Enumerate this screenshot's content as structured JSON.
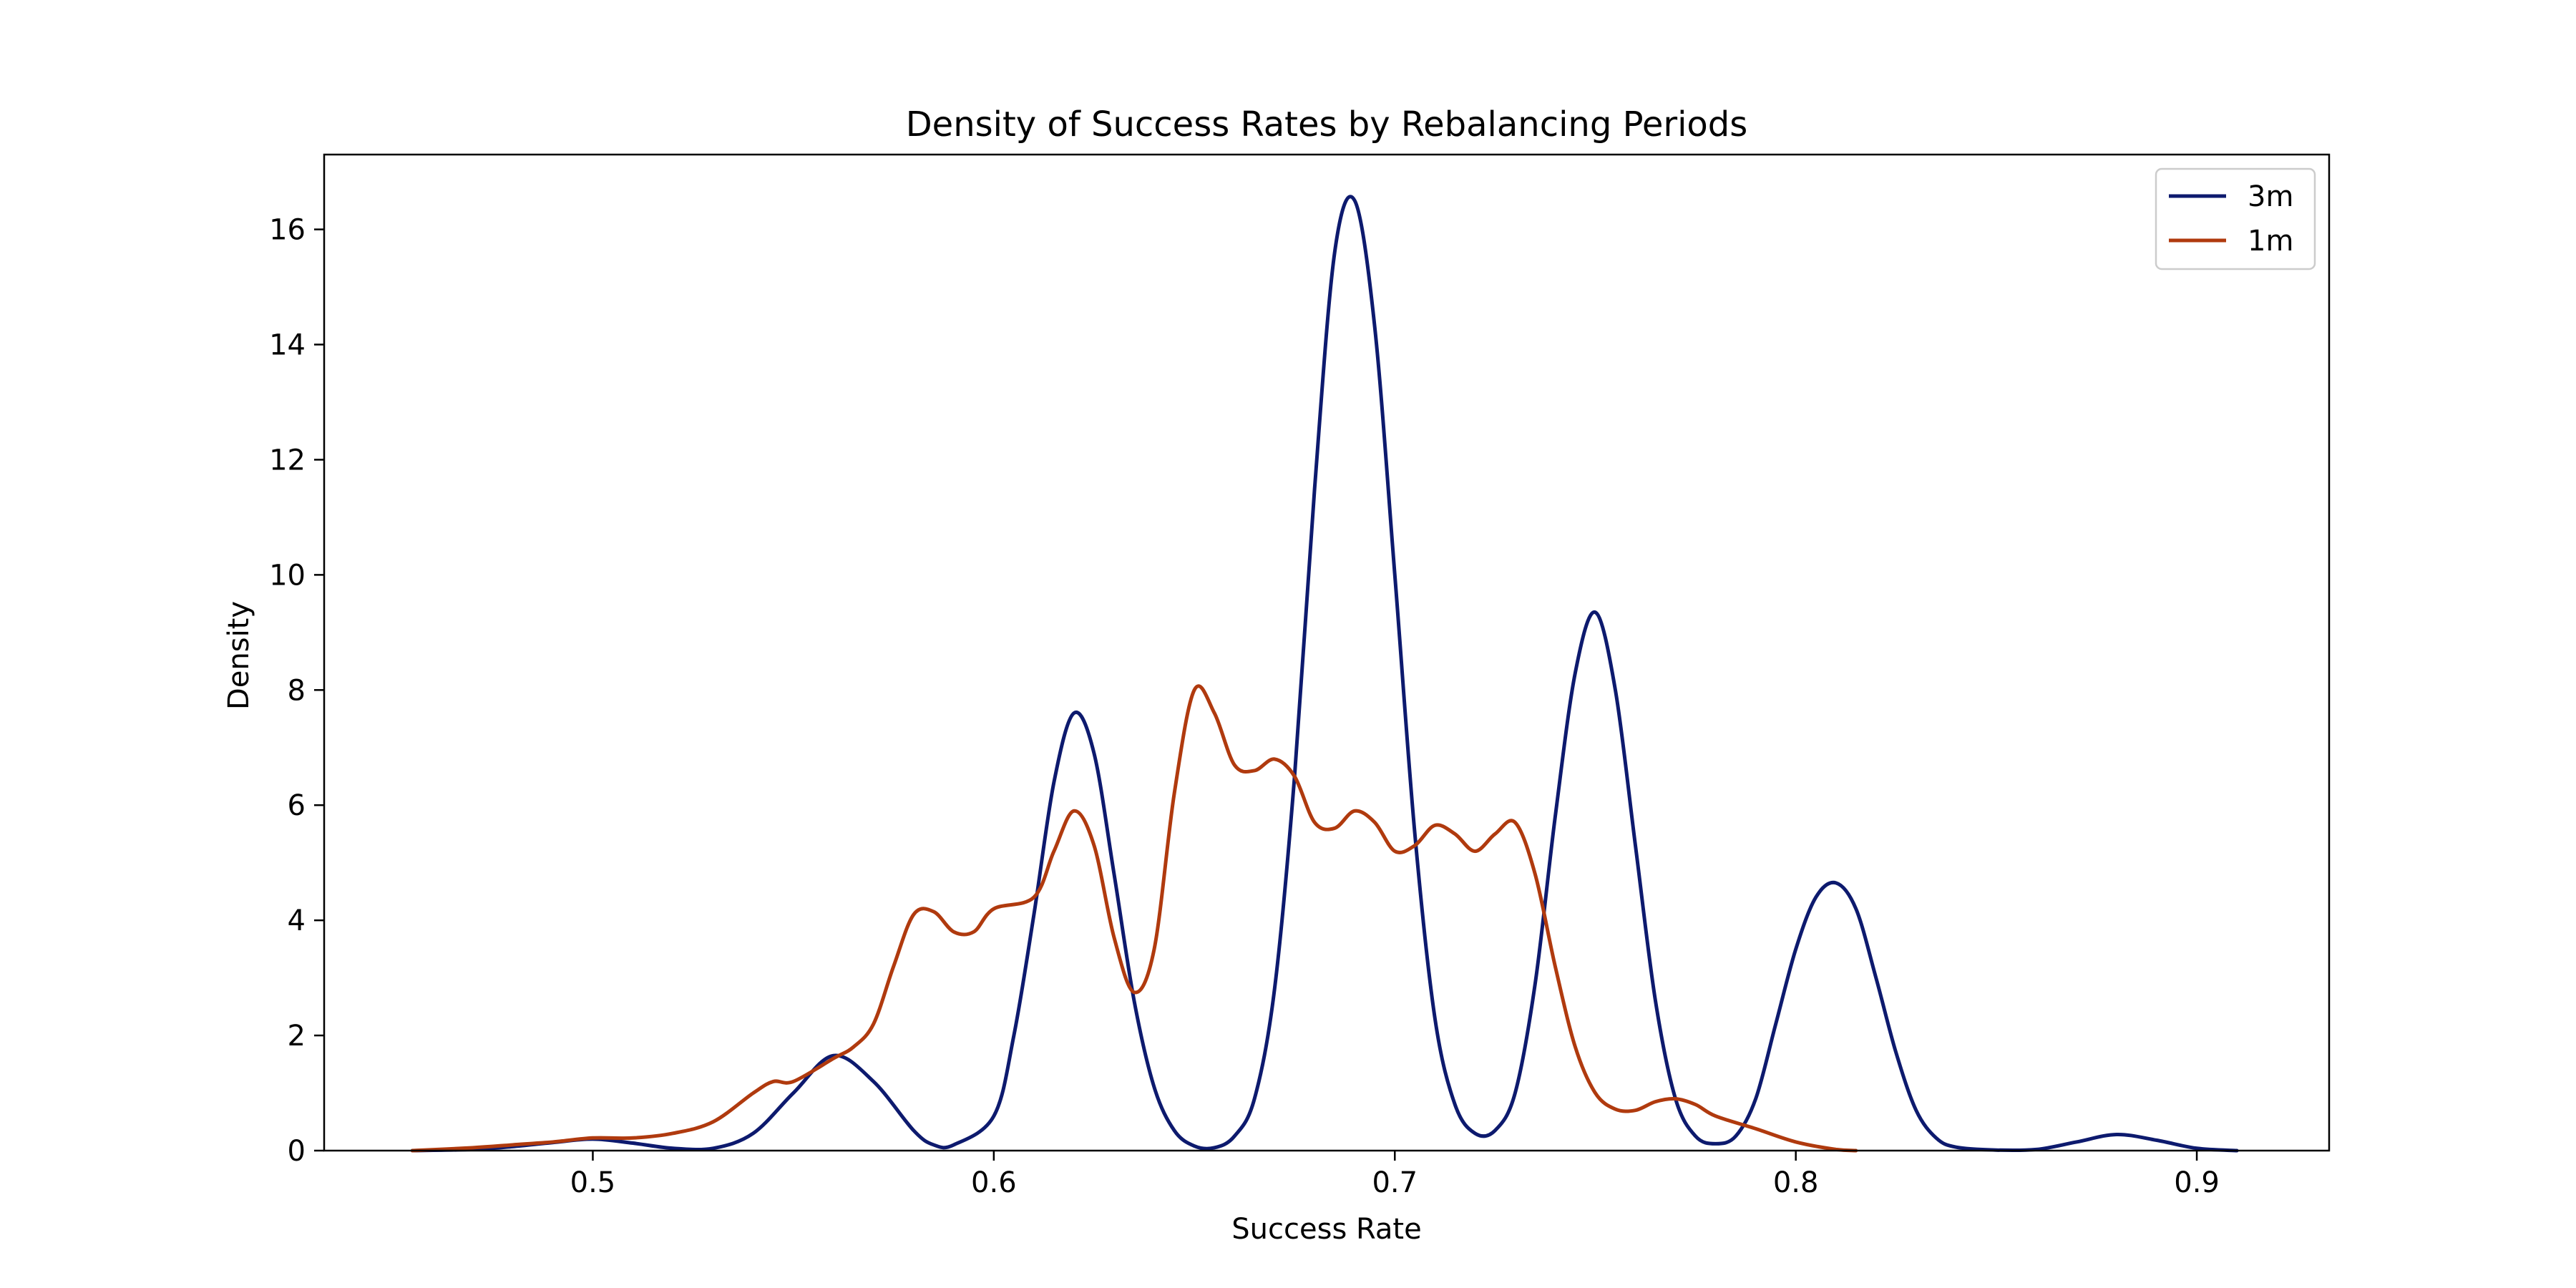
{
  "chart_data": {
    "type": "line",
    "title": "Density of Success Rates by Rebalancing Periods",
    "xlabel": "Success Rate",
    "ylabel": "Density",
    "xlim": [
      0.433,
      0.933
    ],
    "ylim": [
      0,
      17.3
    ],
    "xticks": [
      0.5,
      0.6,
      0.7,
      0.8,
      0.9
    ],
    "xtick_labels": [
      "0.5",
      "0.6",
      "0.7",
      "0.8",
      "0.9"
    ],
    "yticks": [
      0,
      2,
      4,
      6,
      8,
      10,
      12,
      14,
      16
    ],
    "ytick_labels": [
      "0",
      "2",
      "4",
      "6",
      "8",
      "10",
      "12",
      "14",
      "16"
    ],
    "grid": false,
    "legend_position": "top-right",
    "series": [
      {
        "name": "3m",
        "color": "#0d1a6e",
        "points": [
          [
            0.455,
            0.0
          ],
          [
            0.47,
            0.02
          ],
          [
            0.48,
            0.07
          ],
          [
            0.49,
            0.14
          ],
          [
            0.5,
            0.2
          ],
          [
            0.51,
            0.13
          ],
          [
            0.52,
            0.04
          ],
          [
            0.53,
            0.04
          ],
          [
            0.54,
            0.3
          ],
          [
            0.55,
            1.0
          ],
          [
            0.56,
            1.65
          ],
          [
            0.57,
            1.2
          ],
          [
            0.58,
            0.35
          ],
          [
            0.585,
            0.1
          ],
          [
            0.59,
            0.1
          ],
          [
            0.6,
            0.6
          ],
          [
            0.605,
            2.0
          ],
          [
            0.61,
            4.1
          ],
          [
            0.615,
            6.4
          ],
          [
            0.62,
            7.6
          ],
          [
            0.625,
            6.9
          ],
          [
            0.63,
            4.8
          ],
          [
            0.635,
            2.6
          ],
          [
            0.64,
            1.1
          ],
          [
            0.645,
            0.35
          ],
          [
            0.65,
            0.08
          ],
          [
            0.655,
            0.05
          ],
          [
            0.66,
            0.25
          ],
          [
            0.665,
            0.9
          ],
          [
            0.67,
            2.8
          ],
          [
            0.675,
            6.5
          ],
          [
            0.68,
            11.5
          ],
          [
            0.685,
            15.6
          ],
          [
            0.69,
            16.5
          ],
          [
            0.695,
            14.3
          ],
          [
            0.7,
            10.0
          ],
          [
            0.705,
            5.5
          ],
          [
            0.71,
            2.3
          ],
          [
            0.715,
            0.8
          ],
          [
            0.72,
            0.3
          ],
          [
            0.725,
            0.35
          ],
          [
            0.73,
            1.0
          ],
          [
            0.735,
            2.9
          ],
          [
            0.74,
            5.8
          ],
          [
            0.745,
            8.3
          ],
          [
            0.75,
            9.35
          ],
          [
            0.755,
            8.0
          ],
          [
            0.76,
            5.3
          ],
          [
            0.765,
            2.6
          ],
          [
            0.77,
            0.9
          ],
          [
            0.775,
            0.25
          ],
          [
            0.78,
            0.12
          ],
          [
            0.785,
            0.25
          ],
          [
            0.79,
            0.9
          ],
          [
            0.795,
            2.2
          ],
          [
            0.8,
            3.5
          ],
          [
            0.805,
            4.4
          ],
          [
            0.81,
            4.65
          ],
          [
            0.815,
            4.2
          ],
          [
            0.82,
            3.0
          ],
          [
            0.825,
            1.7
          ],
          [
            0.83,
            0.7
          ],
          [
            0.835,
            0.22
          ],
          [
            0.84,
            0.06
          ],
          [
            0.85,
            0.01
          ],
          [
            0.86,
            0.02
          ],
          [
            0.87,
            0.15
          ],
          [
            0.88,
            0.28
          ],
          [
            0.89,
            0.18
          ],
          [
            0.9,
            0.04
          ],
          [
            0.91,
            0.0
          ]
        ]
      },
      {
        "name": "1m",
        "color": "#b03a0e",
        "points": [
          [
            0.455,
            0.0
          ],
          [
            0.47,
            0.05
          ],
          [
            0.48,
            0.1
          ],
          [
            0.49,
            0.15
          ],
          [
            0.5,
            0.22
          ],
          [
            0.51,
            0.22
          ],
          [
            0.52,
            0.3
          ],
          [
            0.53,
            0.5
          ],
          [
            0.54,
            1.0
          ],
          [
            0.545,
            1.2
          ],
          [
            0.55,
            1.2
          ],
          [
            0.56,
            1.6
          ],
          [
            0.565,
            1.8
          ],
          [
            0.57,
            2.2
          ],
          [
            0.575,
            3.2
          ],
          [
            0.58,
            4.1
          ],
          [
            0.585,
            4.15
          ],
          [
            0.59,
            3.8
          ],
          [
            0.595,
            3.8
          ],
          [
            0.6,
            4.2
          ],
          [
            0.61,
            4.4
          ],
          [
            0.615,
            5.2
          ],
          [
            0.62,
            5.9
          ],
          [
            0.625,
            5.3
          ],
          [
            0.63,
            3.7
          ],
          [
            0.635,
            2.75
          ],
          [
            0.64,
            3.5
          ],
          [
            0.645,
            6.2
          ],
          [
            0.65,
            8.0
          ],
          [
            0.655,
            7.6
          ],
          [
            0.66,
            6.7
          ],
          [
            0.665,
            6.6
          ],
          [
            0.67,
            6.8
          ],
          [
            0.675,
            6.5
          ],
          [
            0.68,
            5.7
          ],
          [
            0.685,
            5.6
          ],
          [
            0.69,
            5.9
          ],
          [
            0.695,
            5.7
          ],
          [
            0.7,
            5.2
          ],
          [
            0.705,
            5.3
          ],
          [
            0.71,
            5.65
          ],
          [
            0.715,
            5.5
          ],
          [
            0.72,
            5.2
          ],
          [
            0.725,
            5.5
          ],
          [
            0.73,
            5.7
          ],
          [
            0.735,
            4.8
          ],
          [
            0.74,
            3.2
          ],
          [
            0.745,
            1.8
          ],
          [
            0.75,
            1.0
          ],
          [
            0.755,
            0.72
          ],
          [
            0.76,
            0.7
          ],
          [
            0.765,
            0.85
          ],
          [
            0.77,
            0.9
          ],
          [
            0.775,
            0.8
          ],
          [
            0.78,
            0.6
          ],
          [
            0.79,
            0.38
          ],
          [
            0.8,
            0.15
          ],
          [
            0.81,
            0.02
          ],
          [
            0.815,
            0.0
          ]
        ]
      }
    ]
  }
}
